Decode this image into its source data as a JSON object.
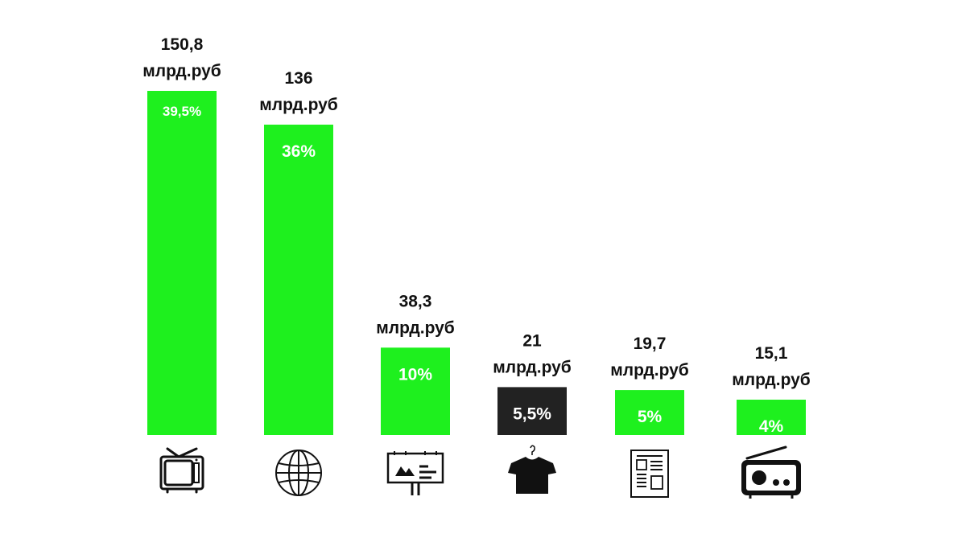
{
  "chart_data": {
    "type": "bar",
    "categories": [
      "tv-icon",
      "globe-icon",
      "billboard-icon",
      "tshirt-icon",
      "newspaper-icon",
      "radio-icon"
    ],
    "values": [
      150.8,
      136,
      38.3,
      21,
      19.7,
      15.1
    ],
    "amount_lines": [
      [
        "150,8",
        "млрд.руб"
      ],
      [
        "136",
        "млрд.руб"
      ],
      [
        "38,3",
        "млрд.руб"
      ],
      [
        "21",
        "млрд.руб"
      ],
      [
        "19,7",
        "млрд.руб"
      ],
      [
        "15,1",
        "млрд.руб"
      ]
    ],
    "percent_labels": [
      "39,5%",
      "36%",
      "10%",
      "5,5%",
      "5%",
      "4%"
    ],
    "bar_colors": [
      "#1ef01e",
      "#1ef01e",
      "#1ef01e",
      "#222222",
      "#1ef01e",
      "#1ef01e"
    ],
    "ylim": [
      0,
      150.8
    ],
    "grid": false,
    "legend": "none"
  }
}
